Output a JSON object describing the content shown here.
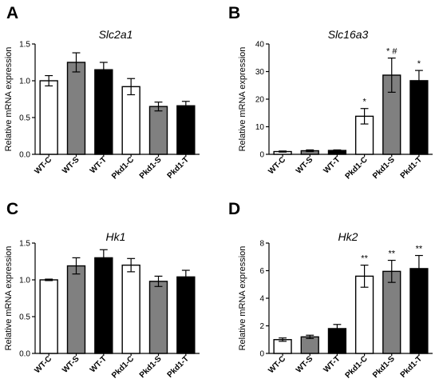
{
  "chart_data": [
    {
      "panel": "A",
      "type": "bar",
      "title": "Slc2a1",
      "ylabel": "Relative mRNA expression",
      "categories": [
        "WT-C",
        "WT-S",
        "WT-T",
        "Pkd1-C",
        "Pkd1-S",
        "Pkd1-T"
      ],
      "values": [
        1.0,
        1.25,
        1.15,
        0.92,
        0.65,
        0.66
      ],
      "errors": [
        0.07,
        0.13,
        0.1,
        0.11,
        0.06,
        0.06
      ],
      "colors": [
        "#ffffff",
        "#808080",
        "#000000",
        "#ffffff",
        "#808080",
        "#000000"
      ],
      "annotations": [
        "",
        "",
        "",
        "",
        "",
        ""
      ],
      "ylim": [
        0,
        1.5
      ],
      "yticks": [
        "0.0",
        "0.5",
        "1.0",
        "1.5"
      ],
      "ytick_values": [
        0,
        0.5,
        1.0,
        1.5
      ]
    },
    {
      "panel": "B",
      "type": "bar",
      "title": "Slc16a3",
      "ylabel": "Relative mRNA expression",
      "categories": [
        "WT-C",
        "WT-S",
        "WT-T",
        "Pkd1-C",
        "Pkd1-S",
        "Pkd1-T"
      ],
      "values": [
        1.0,
        1.3,
        1.4,
        13.8,
        28.7,
        26.7
      ],
      "errors": [
        0.2,
        0.3,
        0.2,
        2.8,
        6.2,
        3.7
      ],
      "colors": [
        "#ffffff",
        "#808080",
        "#000000",
        "#ffffff",
        "#808080",
        "#000000"
      ],
      "annotations": [
        "",
        "",
        "",
        "*",
        "* #",
        "*"
      ],
      "ylim": [
        0,
        40
      ],
      "yticks": [
        "0",
        "10",
        "20",
        "30",
        "40"
      ],
      "ytick_values": [
        0,
        10,
        20,
        30,
        40
      ]
    },
    {
      "panel": "C",
      "type": "bar",
      "title": "Hk1",
      "ylabel": "Relative mRNA expression",
      "categories": [
        "WT-C",
        "WT-S",
        "WT-T",
        "Pkd1-C",
        "Pkd1-S",
        "Pkd1-T"
      ],
      "values": [
        1.0,
        1.19,
        1.3,
        1.2,
        0.98,
        1.04
      ],
      "errors": [
        0.01,
        0.11,
        0.11,
        0.09,
        0.07,
        0.09
      ],
      "colors": [
        "#ffffff",
        "#808080",
        "#000000",
        "#ffffff",
        "#808080",
        "#000000"
      ],
      "annotations": [
        "",
        "",
        "",
        "",
        "",
        ""
      ],
      "ylim": [
        0,
        1.5
      ],
      "yticks": [
        "0.0",
        "0.5",
        "1.0",
        "1.5"
      ],
      "ytick_values": [
        0,
        0.5,
        1.0,
        1.5
      ]
    },
    {
      "panel": "D",
      "type": "bar",
      "title": "Hk2",
      "ylabel": "Relative mRNA expression",
      "categories": [
        "WT-C",
        "WT-S",
        "WT-T",
        "Pkd1-C",
        "Pkd1-S",
        "Pkd1-T"
      ],
      "values": [
        1.0,
        1.2,
        1.8,
        5.6,
        5.95,
        6.15
      ],
      "errors": [
        0.12,
        0.12,
        0.3,
        0.8,
        0.8,
        0.95
      ],
      "colors": [
        "#ffffff",
        "#808080",
        "#000000",
        "#ffffff",
        "#808080",
        "#000000"
      ],
      "annotations": [
        "",
        "",
        "",
        "**",
        "**",
        "**"
      ],
      "ylim": [
        0,
        8
      ],
      "yticks": [
        "0",
        "2",
        "4",
        "6",
        "8"
      ],
      "ytick_values": [
        0,
        2,
        4,
        6,
        8
      ]
    }
  ]
}
